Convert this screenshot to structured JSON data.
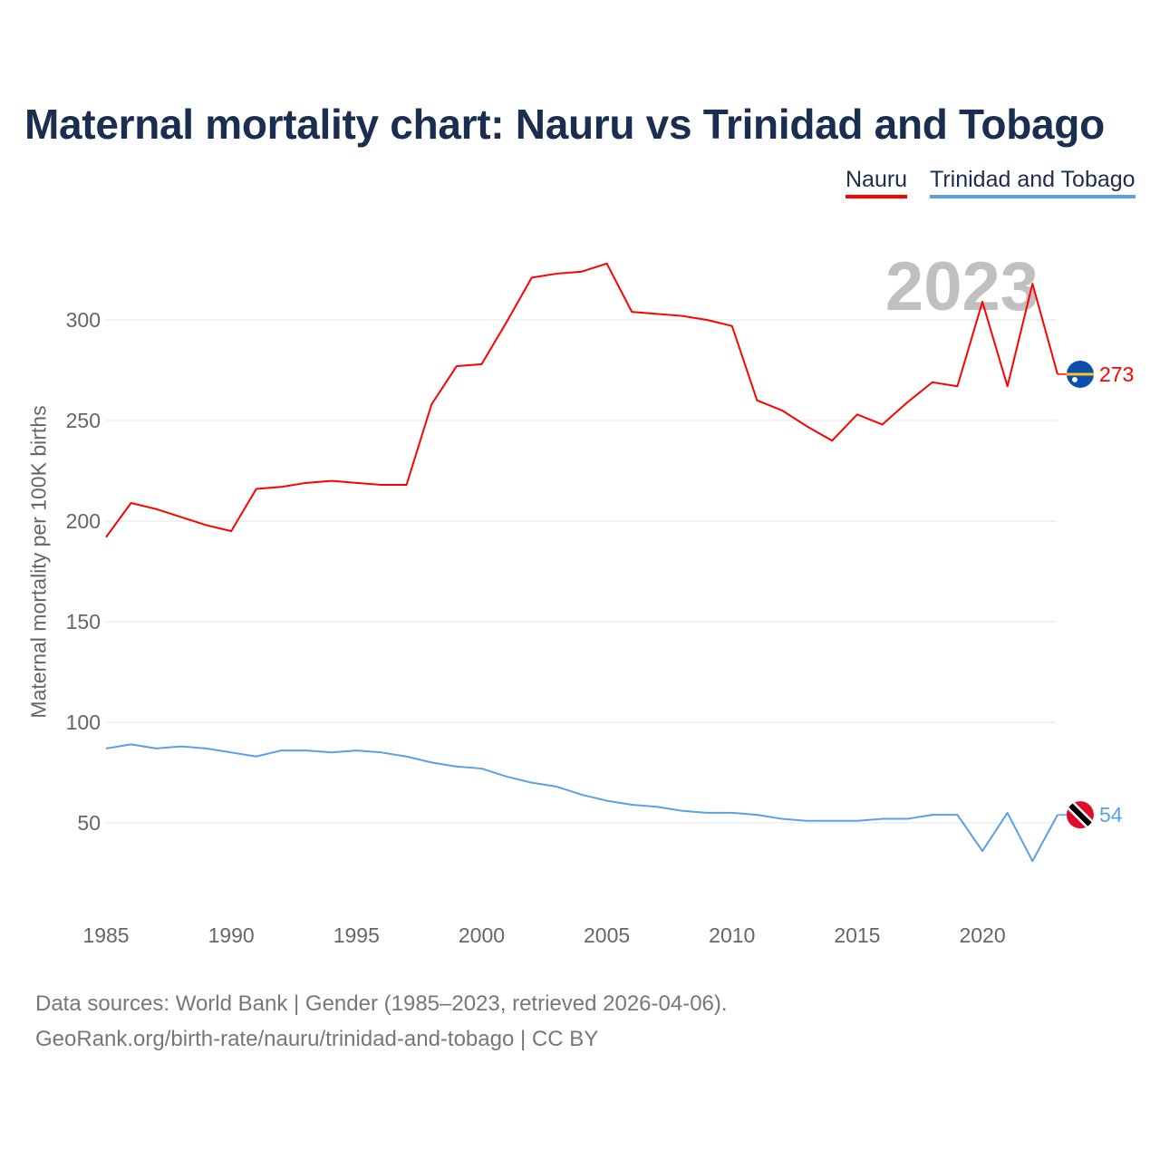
{
  "chart_data": {
    "type": "line",
    "title": "Maternal mortality chart: Nauru vs Trinidad and Tobago",
    "xlabel": "",
    "ylabel": "Maternal mortality per 100K births",
    "xlim": [
      1985,
      2023
    ],
    "ylim": [
      20,
      340
    ],
    "x_ticks": [
      1985,
      1990,
      1995,
      2000,
      2005,
      2010,
      2015,
      2020
    ],
    "y_ticks": [
      50,
      100,
      150,
      200,
      250,
      300
    ],
    "grid": true,
    "legend_position": "top-right",
    "year_watermark": "2023",
    "x": [
      1985,
      1986,
      1987,
      1988,
      1989,
      1990,
      1991,
      1992,
      1993,
      1994,
      1995,
      1996,
      1997,
      1998,
      1999,
      2000,
      2001,
      2002,
      2003,
      2004,
      2005,
      2006,
      2007,
      2008,
      2009,
      2010,
      2011,
      2012,
      2013,
      2014,
      2015,
      2016,
      2017,
      2018,
      2019,
      2020,
      2021,
      2022,
      2023
    ],
    "series": [
      {
        "name": "Nauru",
        "color": "#ff0000",
        "end_label": "273",
        "values": [
          192,
          209,
          206,
          202,
          198,
          195,
          216,
          217,
          219,
          220,
          219,
          218,
          218,
          258,
          277,
          278,
          299,
          321,
          323,
          324,
          328,
          304,
          303,
          302,
          300,
          297,
          260,
          255,
          247,
          240,
          253,
          248,
          259,
          269,
          267,
          309,
          267,
          318,
          273
        ]
      },
      {
        "name": "Trinidad and Tobago",
        "color": "#5aa0e8",
        "end_label": "54",
        "values": [
          87,
          89,
          87,
          88,
          87,
          85,
          83,
          86,
          86,
          85,
          86,
          85,
          83,
          80,
          78,
          77,
          73,
          70,
          68,
          64,
          61,
          59,
          58,
          56,
          55,
          55,
          54,
          52,
          51,
          51,
          51,
          52,
          52,
          54,
          54,
          36,
          55,
          31,
          54
        ]
      }
    ]
  },
  "footer": {
    "line1": "Data sources: World Bank | Gender (1985–2023, retrieved 2026-04-06).",
    "line2": "GeoRank.org/birth-rate/nauru/trinidad-and-tobago | CC BY"
  }
}
